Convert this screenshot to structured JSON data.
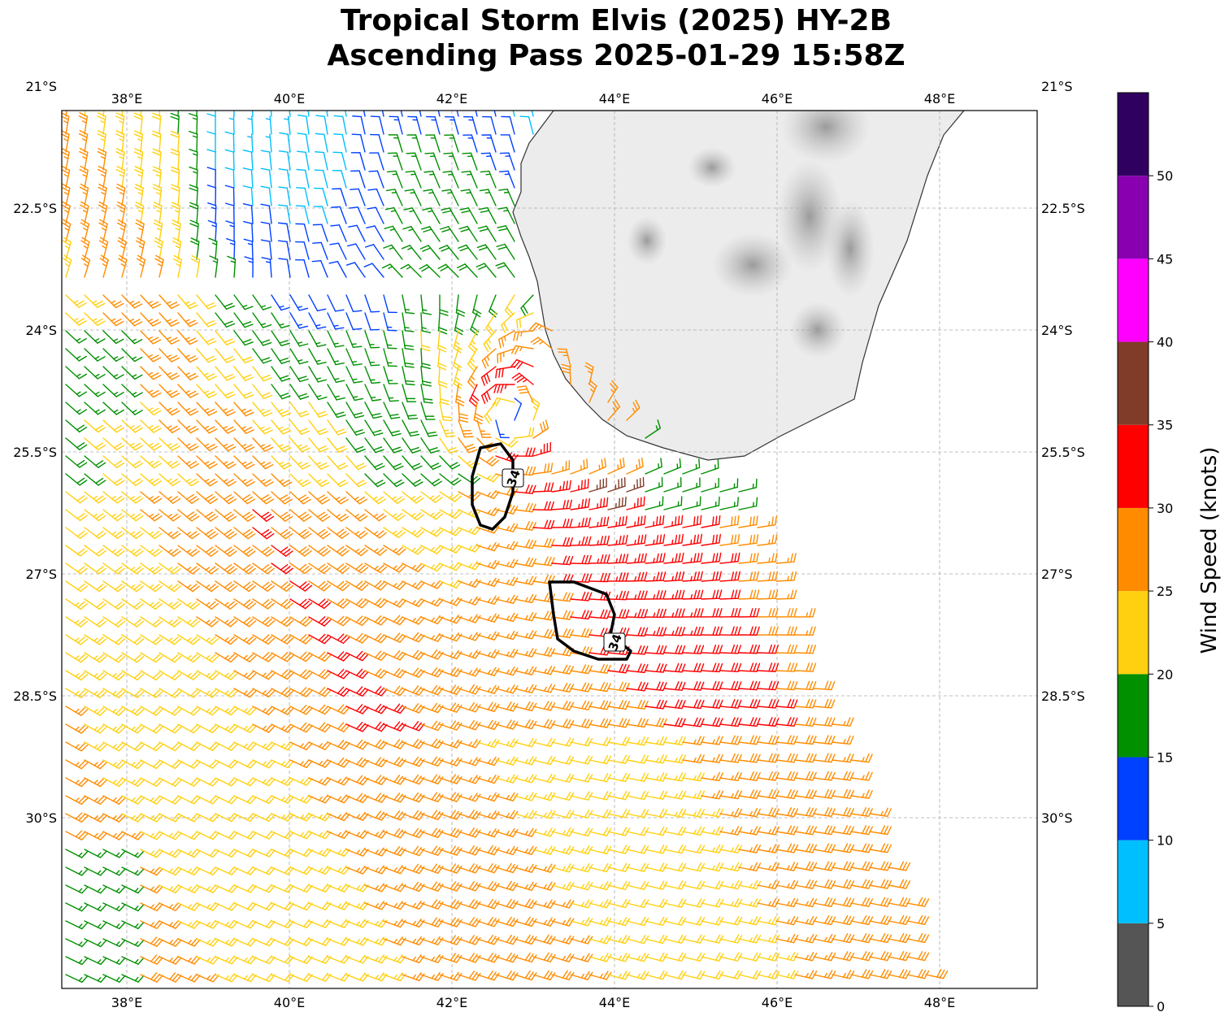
{
  "title": {
    "line1": "Tropical Storm Elvis (2025) HY-2B",
    "line2": "Ascending Pass 2025-01-29 15:58Z"
  },
  "map": {
    "projection": "plate-carree",
    "lon_range": [
      37.2,
      49.2
    ],
    "lat_range": [
      -32.1,
      -21.3
    ],
    "lon_ticks": [
      38,
      40,
      42,
      44,
      46,
      48
    ],
    "lon_tick_labels": [
      "38°E",
      "40°E",
      "42°E",
      "44°E",
      "46°E",
      "48°E"
    ],
    "lat_ticks": [
      -21,
      -22.5,
      -24,
      -25.5,
      -27,
      -28.5,
      -30
    ],
    "lat_tick_labels": [
      "21°S",
      "22.5°S",
      "24°S",
      "25.5°S",
      "27°S",
      "28.5°S",
      "30°S"
    ],
    "gridlines": true,
    "land": "Madagascar",
    "land_shading": "grayscale elevation",
    "storm_center": [
      42.7,
      -25.1
    ],
    "swath_east_edge": [
      [
        43.3,
        -21.3
      ],
      [
        43.0,
        -22.3
      ],
      [
        42.9,
        -23.4
      ],
      [
        43.4,
        -24.2
      ],
      [
        44.1,
        -25.0
      ],
      [
        44.8,
        -25.5
      ],
      [
        45.6,
        -26.0
      ],
      [
        46.0,
        -26.8
      ],
      [
        46.4,
        -28.1
      ],
      [
        47.0,
        -29.5
      ],
      [
        47.6,
        -31.0
      ],
      [
        47.9,
        -32.1
      ]
    ]
  },
  "contours": [
    {
      "value_label": "34",
      "units": "knots",
      "path": [
        [
          42.6,
          -25.4
        ],
        [
          42.75,
          -25.6
        ],
        [
          42.75,
          -26.0
        ],
        [
          42.65,
          -26.3
        ],
        [
          42.5,
          -26.45
        ],
        [
          42.35,
          -26.4
        ],
        [
          42.25,
          -26.15
        ],
        [
          42.25,
          -25.8
        ],
        [
          42.35,
          -25.45
        ]
      ],
      "label_at": [
        42.75,
        -25.82
      ]
    },
    {
      "value_label": "34",
      "units": "knots",
      "path": [
        [
          43.2,
          -27.1
        ],
        [
          43.5,
          -27.1
        ],
        [
          43.9,
          -27.25
        ],
        [
          44.0,
          -27.5
        ],
        [
          43.95,
          -27.75
        ],
        [
          44.2,
          -27.95
        ],
        [
          44.15,
          -28.05
        ],
        [
          43.8,
          -28.05
        ],
        [
          43.5,
          -27.95
        ],
        [
          43.3,
          -27.8
        ],
        [
          43.25,
          -27.5
        ]
      ],
      "label_at": [
        44.0,
        -27.84
      ]
    }
  ],
  "colorbar": {
    "label": "Wind Speed (knots)",
    "bounds": [
      0,
      5,
      10,
      15,
      20,
      25,
      30,
      35,
      40,
      45,
      50,
      55
    ],
    "tick_values": [
      0,
      5,
      10,
      15,
      20,
      25,
      30,
      35,
      40,
      45,
      50
    ],
    "tick_labels": [
      "0",
      "5",
      "10",
      "15",
      "20",
      "25",
      "30",
      "35",
      "40",
      "45",
      "50"
    ],
    "colors": [
      "#555555",
      "#00bfff",
      "#0040ff",
      "#009000",
      "#ffd010",
      "#ff8c00",
      "#ff0000",
      "#803c28",
      "#ff00ff",
      "#8800b0",
      "#300060"
    ]
  }
}
